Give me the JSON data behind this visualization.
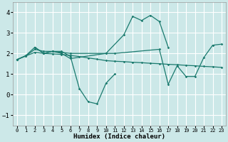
{
  "xlabel": "Humidex (Indice chaleur)",
  "xlim": [
    -0.5,
    23.5
  ],
  "ylim": [
    -1.5,
    4.5
  ],
  "yticks": [
    -1,
    0,
    1,
    2,
    3,
    4
  ],
  "xticks": [
    0,
    1,
    2,
    3,
    4,
    5,
    6,
    7,
    8,
    9,
    10,
    11,
    12,
    13,
    14,
    15,
    16,
    17,
    18,
    19,
    20,
    21,
    22,
    23
  ],
  "background_color": "#cce8e8",
  "grid_color": "#ffffff",
  "line_color": "#1a7a6e",
  "line1": {
    "x": [
      0,
      1,
      2,
      3,
      4,
      5,
      6,
      7,
      8,
      9,
      10,
      11
    ],
    "y": [
      1.7,
      1.9,
      2.3,
      2.0,
      2.1,
      2.1,
      1.85,
      0.3,
      -0.35,
      -0.45,
      0.55,
      1.0
    ]
  },
  "line2": {
    "x": [
      2,
      3,
      4,
      5,
      6,
      10,
      12,
      13,
      14,
      15,
      16,
      17
    ],
    "y": [
      2.3,
      2.0,
      2.1,
      2.0,
      1.75,
      2.0,
      2.9,
      3.8,
      3.6,
      3.85,
      3.55,
      2.3
    ]
  },
  "line3": {
    "x": [
      0,
      1,
      2,
      3,
      4,
      5,
      6,
      7,
      8,
      9,
      10,
      11,
      12,
      13,
      14,
      15,
      16,
      17,
      18,
      19,
      20,
      21,
      22,
      23
    ],
    "y": [
      1.7,
      1.88,
      2.05,
      2.0,
      1.98,
      1.95,
      1.9,
      1.85,
      1.78,
      1.72,
      1.65,
      1.62,
      1.6,
      1.57,
      1.55,
      1.52,
      1.5,
      1.47,
      1.45,
      1.42,
      1.4,
      1.37,
      1.35,
      1.32
    ]
  },
  "line4": {
    "x": [
      0,
      1,
      2,
      3,
      4,
      5,
      6,
      10,
      11,
      16,
      17,
      18,
      19,
      20,
      21,
      22,
      23
    ],
    "y": [
      1.7,
      1.88,
      2.2,
      2.1,
      2.1,
      2.05,
      2.0,
      2.0,
      2.0,
      2.2,
      0.5,
      1.4,
      0.88,
      0.88,
      1.8,
      2.4,
      2.45
    ]
  }
}
